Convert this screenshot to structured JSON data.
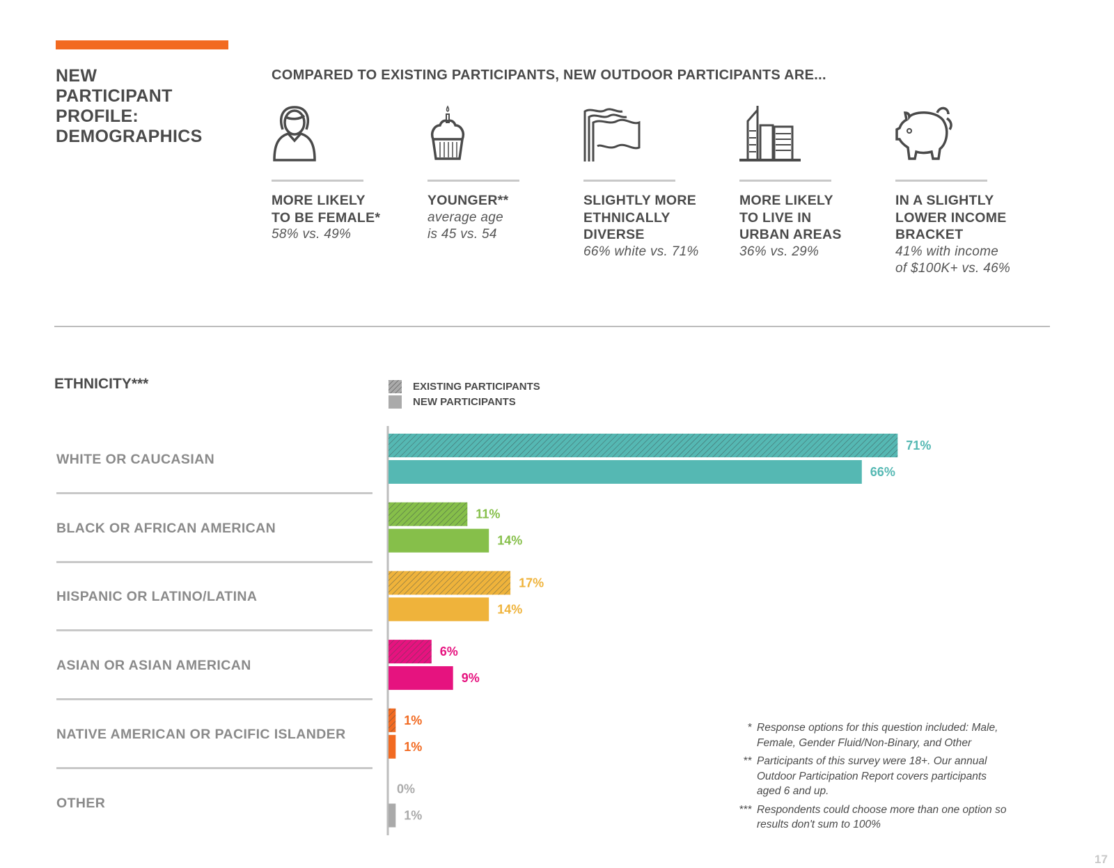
{
  "header": {
    "title": "NEW PARTICIPANT PROFILE: DEMOGRAPHICS",
    "title_lines": [
      "NEW",
      "PARTICIPANT",
      "PROFILE:",
      "DEMOGRAPHICS"
    ],
    "subtitle": "COMPARED TO EXISTING PARTICIPANTS, NEW OUTDOOR PARTICIPANTS ARE...",
    "accent_color": "#f26a21"
  },
  "stats": [
    {
      "icon": "woman-icon",
      "headline": "MORE LIKELY\nTO BE FEMALE*",
      "detail": "58% vs. 49%"
    },
    {
      "icon": "cupcake-icon",
      "headline": "YOUNGER**",
      "detail": "average age\nis 45 vs. 54"
    },
    {
      "icon": "flags-icon",
      "headline": "SLIGHTLY MORE\nETHNICALLY\nDIVERSE",
      "detail": "66% white vs. 71%"
    },
    {
      "icon": "buildings-icon",
      "headline": "MORE LIKELY\nTO LIVE IN\nURBAN AREAS",
      "detail": "36% vs. 29%"
    },
    {
      "icon": "piggy-bank-icon",
      "headline": "IN A SLIGHTLY\nLOWER INCOME\nBRACKET",
      "detail": "41% with income\nof $100K+ vs. 46%"
    }
  ],
  "chart_data": {
    "type": "bar",
    "orientation": "horizontal",
    "title": "ETHNICITY***",
    "categories": [
      "WHITE OR CAUCASIAN",
      "BLACK OR AFRICAN AMERICAN",
      "HISPANIC OR LATINO/LATINA",
      "ASIAN OR ASIAN AMERICAN",
      "NATIVE AMERICAN OR PACIFIC ISLANDER",
      "OTHER"
    ],
    "category_colors": [
      "#55b8b3",
      "#86bf4a",
      "#efb33b",
      "#e6137f",
      "#f26a21",
      "#aaaaaa"
    ],
    "series": [
      {
        "name": "EXISTING PARTICIPANTS",
        "style": "hatched",
        "values": [
          71,
          11,
          17,
          6,
          1,
          0
        ],
        "labels": [
          "71%",
          "11%",
          "17%",
          "6%",
          "1%",
          "0%"
        ]
      },
      {
        "name": "NEW PARTICIPANTS",
        "style": "solid",
        "values": [
          66,
          14,
          14,
          9,
          1,
          1
        ],
        "labels": [
          "66%",
          "14%",
          "14%",
          "9%",
          "1%",
          "1%"
        ]
      }
    ],
    "legend": "top-left",
    "unit": "%",
    "grid": false
  },
  "footnotes": [
    {
      "mark": "*",
      "text": "Response options for this question included: Male, Female, Gender Fluid/Non-Binary, and Other"
    },
    {
      "mark": "**",
      "text": "Participants of this survey were 18+. Our annual Outdoor Participation Report covers participants aged 6 and up."
    },
    {
      "mark": "***",
      "text": "Respondents could choose more than one option so results don't sum to 100%"
    }
  ],
  "page_number": "17"
}
